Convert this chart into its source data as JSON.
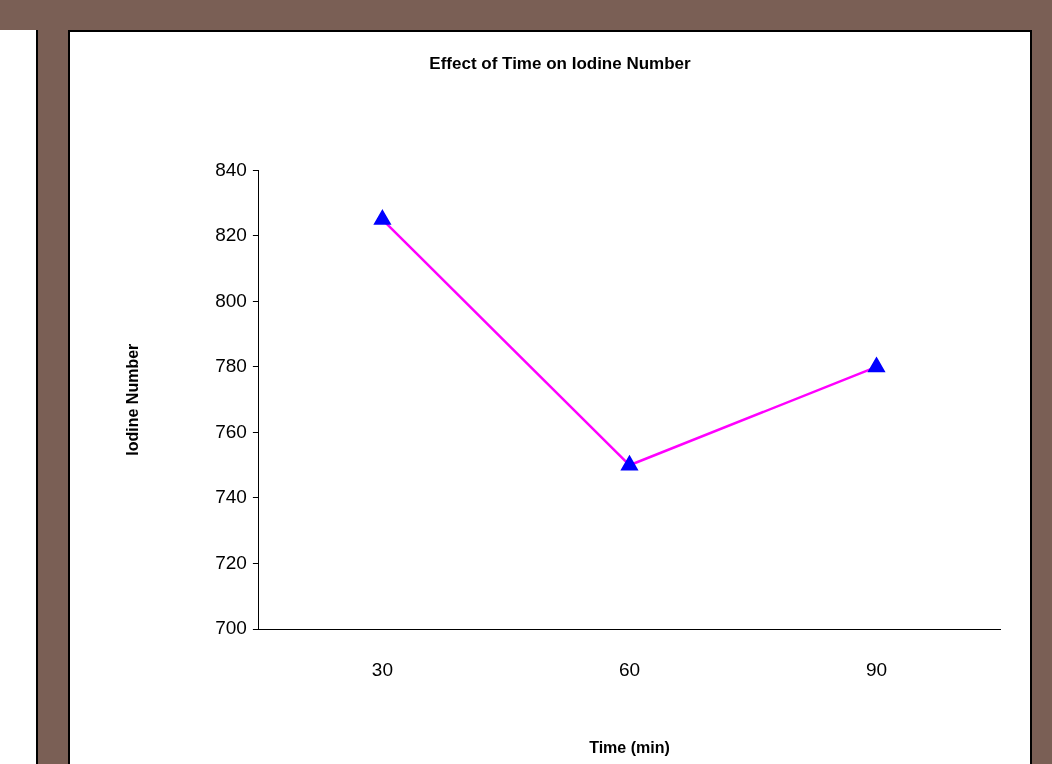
{
  "chart_data": {
    "type": "line",
    "title": "Effect of Time on Iodine Number",
    "xlabel": "Time (min)",
    "ylabel": "Iodine Number",
    "categories": [
      "30",
      "60",
      "90"
    ],
    "series": [
      {
        "color": "#ff00ff",
        "colors": [
          "#0000ff",
          "#0000ff",
          "#0000ff"
        ],
        "values": [
          825,
          750,
          780
        ]
      }
    ],
    "marker": "triangle",
    "line_style": "solid",
    "ylim": [
      700,
      840
    ],
    "yticks": [
      700,
      720,
      740,
      760,
      780,
      800,
      820,
      840
    ],
    "grid": false,
    "legend": false
  }
}
